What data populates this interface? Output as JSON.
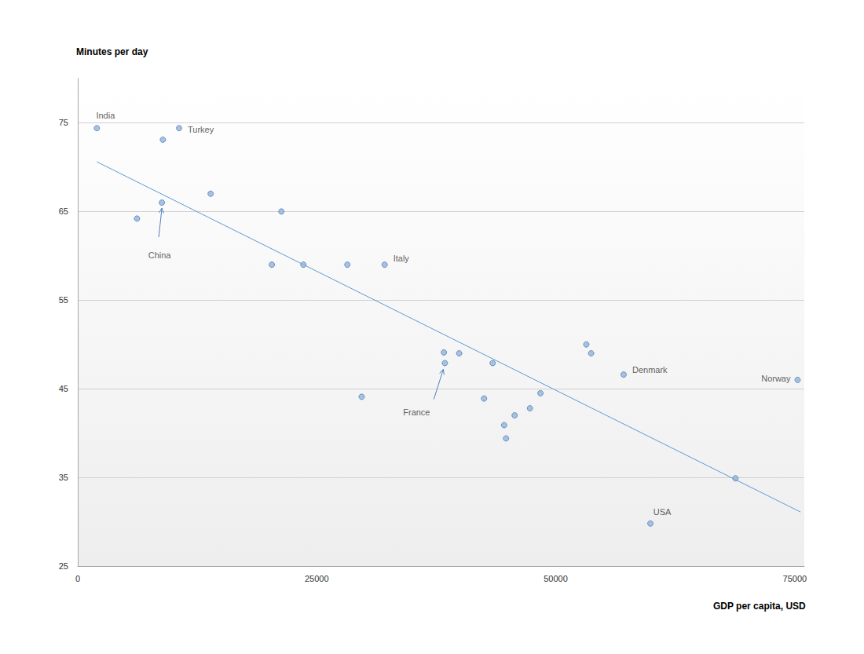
{
  "chart_data": {
    "type": "scatter",
    "y_label": "Minutes per day",
    "x_label": "GDP per capita, USD",
    "xlim": [
      0,
      76000
    ],
    "xticks": [
      0,
      25000,
      50000,
      75000
    ],
    "ylim": [
      25,
      80
    ],
    "yticks": [
      25,
      35,
      45,
      55,
      65,
      75
    ],
    "grid": true,
    "series": [
      {
        "type": "scatter",
        "color": "#95b3d7",
        "marker": "circle",
        "x": [
          2000,
          8900,
          10600,
          6200,
          8800,
          13900,
          21300,
          20300,
          23600,
          28200,
          32100,
          29700,
          38300,
          38400,
          39900,
          43400,
          42500,
          44600,
          44800,
          45700,
          47300,
          48400,
          53200,
          53700,
          57100,
          59900,
          68800,
          75300
        ],
        "values": [
          74.4,
          73.1,
          74.4,
          64.2,
          66.0,
          67.0,
          65.0,
          59.0,
          59.0,
          59.0,
          59.0,
          44.1,
          49.1,
          47.9,
          49.0,
          47.9,
          43.9,
          40.9,
          39.4,
          42.0,
          42.8,
          44.5,
          50.0,
          49.0,
          46.6,
          29.8,
          34.9,
          46.0
        ],
        "point_labels": [
          "India",
          null,
          "Turkey",
          null,
          "China",
          null,
          null,
          null,
          null,
          null,
          "Italy",
          null,
          null,
          "France",
          null,
          null,
          null,
          null,
          null,
          null,
          null,
          null,
          null,
          null,
          "Denmark",
          "USA",
          null,
          "Norway"
        ]
      },
      {
        "type": "line",
        "color": "#5b9bd5",
        "line_style": "solid",
        "x": [
          2000,
          75600
        ],
        "values": [
          70.6,
          31.1
        ]
      }
    ]
  }
}
